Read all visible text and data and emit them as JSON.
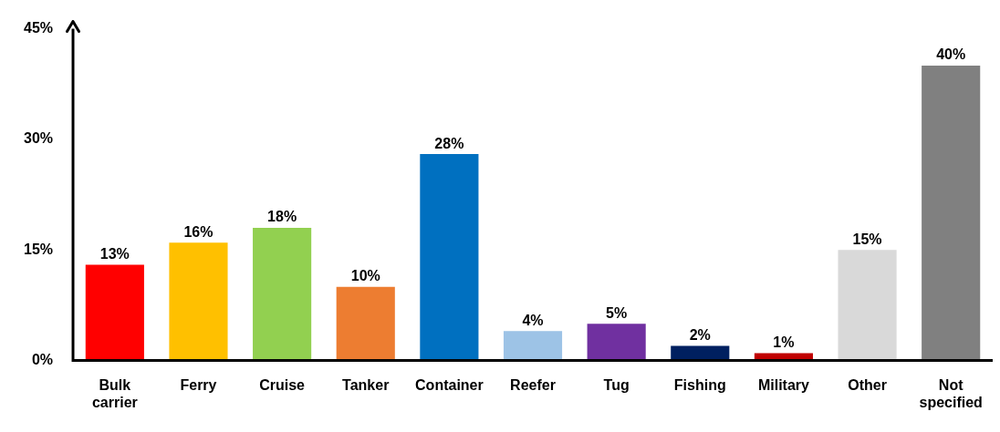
{
  "chart_data": {
    "type": "bar",
    "categories": [
      "Bulk carrier",
      "Ferry",
      "Cruise",
      "Tanker",
      "Container",
      "Reefer",
      "Tug",
      "Fishing",
      "Military",
      "Other",
      "Not specified"
    ],
    "values": [
      13,
      16,
      18,
      10,
      28,
      4,
      5,
      2,
      1,
      15,
      40
    ],
    "colors": [
      "#ff0000",
      "#ffc000",
      "#92d050",
      "#ed7d31",
      "#0070c0",
      "#9dc3e6",
      "#7030a0",
      "#002060",
      "#c00000",
      "#d9d9d9",
      "#808080"
    ],
    "value_labels": [
      "13%",
      "16%",
      "18%",
      "10%",
      "28%",
      "4%",
      "5%",
      "2%",
      "1%",
      "15%",
      "40%"
    ],
    "ylim": [
      0,
      45
    ],
    "yticks": [
      {
        "value": 0,
        "label": "0%"
      },
      {
        "value": 15,
        "label": "15%"
      },
      {
        "value": 30,
        "label": "30%"
      },
      {
        "value": 45,
        "label": "45%"
      }
    ],
    "grid": false,
    "legend": false
  }
}
